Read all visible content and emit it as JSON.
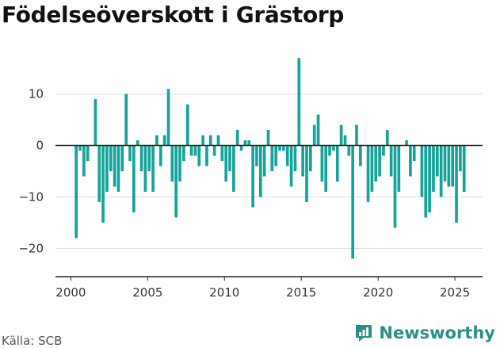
{
  "title": "Födelseöverskott i Grästorp",
  "source": "Källa: SCB",
  "brand": "Newsworthy",
  "colors": {
    "bar": "#14a39a",
    "axis": "#222222",
    "grid": "#dddddd",
    "brand": "#2a8f86"
  },
  "chart_data": {
    "type": "bar",
    "title": "Födelseöverskott i Grästorp",
    "xlabel": "",
    "ylabel": "",
    "x_range": [
      1999.0,
      2026.8
    ],
    "ylim": [
      -25.5,
      17.5
    ],
    "y_ticks": [
      10,
      0,
      -10,
      -20
    ],
    "x_ticks": [
      2000,
      2005,
      2010,
      2015,
      2020,
      2025
    ],
    "bar_width": 0.19,
    "grid": true,
    "series": [
      {
        "values": [
          -18,
          -1,
          -6,
          -3,
          0,
          9,
          -11,
          -15,
          -9,
          -5,
          -8,
          -9,
          -5,
          10,
          -3,
          -13,
          1,
          -5,
          -9,
          -5,
          -9,
          2,
          -4,
          2,
          11,
          -7,
          -14,
          -7,
          -3,
          8,
          -2,
          -2,
          -4,
          2,
          -4,
          2,
          -2,
          2,
          -3,
          -7,
          -5,
          -9,
          3,
          -1,
          1,
          1,
          -12,
          -4,
          -10,
          -6,
          3,
          -5,
          -4,
          -1,
          -1,
          -4,
          -8,
          -5,
          17,
          -6,
          -11,
          -5,
          4,
          6,
          -7,
          -9,
          -2,
          -1,
          -7,
          4,
          2,
          -2,
          -22,
          4,
          -4,
          0,
          -11,
          -9,
          -7,
          -6,
          -2,
          3,
          -6,
          -16,
          -9,
          0,
          1,
          -6,
          -3,
          0,
          -10,
          -14,
          -13,
          -9,
          -6,
          -10,
          -7,
          -8,
          -8,
          -15,
          -5,
          -9
        ]
      }
    ]
  }
}
